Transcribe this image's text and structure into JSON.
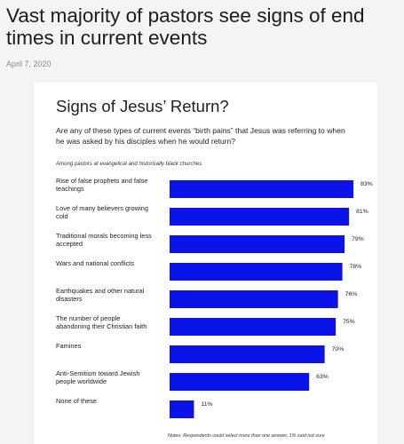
{
  "article": {
    "headline_line1": "Vast majority of pastors see signs of end",
    "headline_line2": "times in current events",
    "date": "April 7, 2020"
  },
  "chart_data": {
    "type": "bar",
    "orientation": "horizontal",
    "title": "Signs of Jesus’ Return?",
    "question_line1": "Are any of these types of current events “birth pains” that Jesus was referring to when",
    "question_line2": "he was asked by his disciples when he would return?",
    "subtitle": "Among pastors at evangelical and historically black churches",
    "categories": [
      [
        "Rise of false prophets and false",
        "teachings"
      ],
      [
        "Love of many believers growing",
        "cold"
      ],
      [
        "Traditional morals becoming less",
        "accepted"
      ],
      [
        "Wars and national conflicts"
      ],
      [
        "Earthquakes and other natural",
        "disasters"
      ],
      [
        "The number of people",
        "abandoning their Christian faith"
      ],
      [
        "Famines"
      ],
      [
        "Anti-Semitism toward Jewish",
        "people worldwide"
      ],
      [
        "None of these"
      ]
    ],
    "values": [
      83,
      81,
      79,
      78,
      76,
      75,
      70,
      63,
      11
    ],
    "value_suffix": "%",
    "xlim": [
      0,
      100
    ],
    "bar_color": "#0a14e8",
    "grid": false,
    "legend": false,
    "notes": "Notes: Respondents could select more than one answer, 1% said not sure"
  }
}
